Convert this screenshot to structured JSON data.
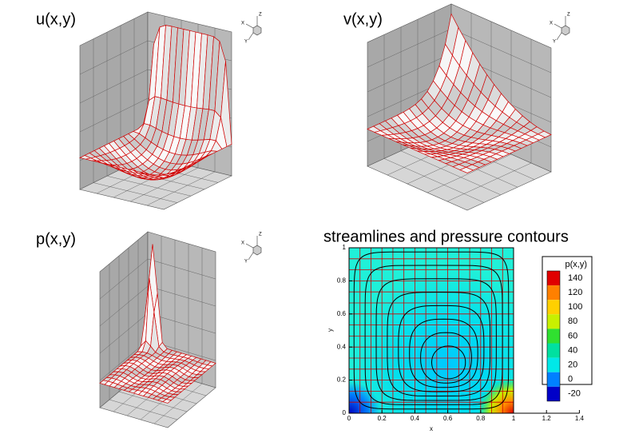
{
  "chart_data": [
    {
      "type": "surface",
      "title": "u(x,y)",
      "triad": {
        "z": "Z",
        "x": "X",
        "y": "Y"
      }
    },
    {
      "type": "surface",
      "title": "v(x,y)",
      "triad": {
        "z": "Z",
        "x": "X",
        "y": "Y"
      }
    },
    {
      "type": "surface",
      "title": "p(x,y)",
      "triad": {
        "z": "Z",
        "x": "X",
        "y": "Y"
      }
    },
    {
      "type": "contour",
      "title": "streamlines and pressure contours",
      "x_label": "x",
      "y_label": "y",
      "xlim": [
        0,
        1.4
      ],
      "xticks": [
        0,
        0.2,
        0.4,
        0.6,
        0.8,
        1,
        1.2,
        1.4
      ],
      "ylim": [
        0,
        1
      ],
      "yticks": [
        0,
        0.2,
        0.4,
        0.6,
        0.8,
        1
      ],
      "colorbar": {
        "title": "p(x,y)",
        "levels": [
          140,
          120,
          100,
          80,
          60,
          40,
          20,
          0,
          -20
        ],
        "colors": [
          "#e00000",
          "#ff8000",
          "#ffd000",
          "#c8f000",
          "#30e030",
          "#00e0a0",
          "#00e8e8",
          "#0080ff",
          "#0000c8"
        ]
      }
    }
  ]
}
